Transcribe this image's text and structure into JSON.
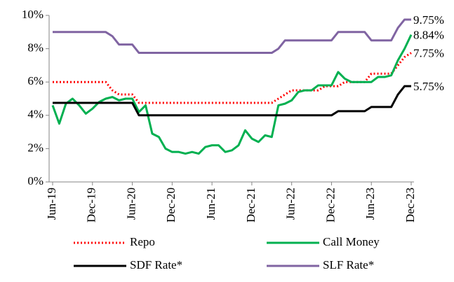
{
  "chart_data": {
    "type": "line",
    "categories": [
      "Jun-19",
      null,
      null,
      null,
      null,
      null,
      "Dec-19",
      null,
      null,
      null,
      null,
      null,
      "Jun-20",
      null,
      null,
      null,
      null,
      null,
      "Dec-20",
      null,
      null,
      null,
      null,
      null,
      "Jun-21",
      null,
      null,
      null,
      null,
      null,
      "Dec-21",
      null,
      null,
      null,
      null,
      null,
      "Jun-22",
      null,
      null,
      null,
      null,
      null,
      "Dec-22",
      null,
      null,
      null,
      null,
      null,
      "Jun-23",
      null,
      null,
      null,
      null,
      null,
      "Dec-23"
    ],
    "ylim": [
      0,
      10
    ],
    "yticks": [
      {
        "value": 0,
        "label": "0%"
      },
      {
        "value": 2,
        "label": "2%"
      },
      {
        "value": 4,
        "label": "4%"
      },
      {
        "value": 6,
        "label": "6%"
      },
      {
        "value": 8,
        "label": "8%"
      },
      {
        "value": 10,
        "label": "10%"
      }
    ],
    "grid": false,
    "legend": "bottom",
    "series": [
      {
        "name": "Repo",
        "color": "#ff0000",
        "dash": "dotted",
        "values": [
          6,
          6,
          6,
          6,
          6,
          6,
          6,
          6,
          6,
          5.5,
          5.25,
          5.25,
          5.25,
          4.75,
          4.75,
          4.75,
          4.75,
          4.75,
          4.75,
          4.75,
          4.75,
          4.75,
          4.75,
          4.75,
          4.75,
          4.75,
          4.75,
          4.75,
          4.75,
          4.75,
          4.75,
          4.75,
          4.75,
          4.75,
          5,
          5.25,
          5.5,
          5.5,
          5.5,
          5.5,
          5.5,
          5.75,
          5.75,
          5.75,
          6,
          6,
          6,
          6,
          6.5,
          6.5,
          6.5,
          6.5,
          7,
          7.5,
          7.75
        ],
        "value_labels": [
          null,
          null,
          null,
          null,
          null,
          null,
          null,
          null,
          null,
          null,
          null,
          null,
          null,
          null,
          null,
          null,
          null,
          null,
          null,
          null,
          null,
          null,
          null,
          null,
          null,
          null,
          null,
          null,
          null,
          null,
          null,
          null,
          null,
          null,
          null,
          null,
          null,
          null,
          null,
          null,
          null,
          null,
          null,
          null,
          null,
          null,
          null,
          null,
          null,
          null,
          null,
          null,
          null,
          null,
          "7.75%"
        ]
      },
      {
        "name": "Call Money",
        "color": "#00b050",
        "dash": "solid",
        "values": [
          4.6,
          3.5,
          4.7,
          5.0,
          4.6,
          4.1,
          4.4,
          4.8,
          5.0,
          5.1,
          4.9,
          5.0,
          5.0,
          4.2,
          4.6,
          2.9,
          2.7,
          2.0,
          1.8,
          1.8,
          1.7,
          1.8,
          1.7,
          2.1,
          2.2,
          2.2,
          1.8,
          1.9,
          2.2,
          3.1,
          2.6,
          2.4,
          2.8,
          2.7,
          4.6,
          4.7,
          4.9,
          5.4,
          5.5,
          5.5,
          5.8,
          5.8,
          5.8,
          6.6,
          6.2,
          6.0,
          6.0,
          6.0,
          6.0,
          6.3,
          6.3,
          6.4,
          7.3,
          8.0,
          8.84
        ],
        "value_labels": [
          null,
          null,
          null,
          null,
          null,
          null,
          null,
          null,
          null,
          null,
          null,
          null,
          null,
          null,
          null,
          null,
          null,
          null,
          null,
          null,
          null,
          null,
          null,
          null,
          null,
          null,
          null,
          null,
          null,
          null,
          null,
          null,
          null,
          null,
          null,
          null,
          null,
          null,
          null,
          null,
          null,
          null,
          null,
          null,
          null,
          null,
          null,
          null,
          null,
          null,
          null,
          null,
          null,
          null,
          "8.84%"
        ]
      },
      {
        "name": "SDF Rate*",
        "color": "#000000",
        "dash": "solid",
        "values": [
          4.75,
          4.75,
          4.75,
          4.75,
          4.75,
          4.75,
          4.75,
          4.75,
          4.75,
          4.75,
          4.75,
          4.75,
          4.75,
          4,
          4,
          4,
          4,
          4,
          4,
          4,
          4,
          4,
          4,
          4,
          4,
          4,
          4,
          4,
          4,
          4,
          4,
          4,
          4,
          4,
          4,
          4,
          4,
          4,
          4,
          4,
          4,
          4,
          4,
          4.25,
          4.25,
          4.25,
          4.25,
          4.25,
          4.5,
          4.5,
          4.5,
          4.5,
          5.25,
          5.75,
          5.75
        ],
        "value_labels": [
          null,
          null,
          null,
          null,
          null,
          null,
          null,
          null,
          null,
          null,
          null,
          null,
          null,
          null,
          null,
          null,
          null,
          null,
          null,
          null,
          null,
          null,
          null,
          null,
          null,
          null,
          null,
          null,
          null,
          null,
          null,
          null,
          null,
          null,
          null,
          null,
          null,
          null,
          null,
          null,
          null,
          null,
          null,
          null,
          null,
          null,
          null,
          null,
          null,
          null,
          null,
          null,
          null,
          null,
          "5.75%"
        ]
      },
      {
        "name": "SLF Rate*",
        "color": "#8064a2",
        "dash": "solid",
        "values": [
          9,
          9,
          9,
          9,
          9,
          9,
          9,
          9,
          9,
          8.75,
          8.25,
          8.25,
          8.25,
          7.75,
          7.75,
          7.75,
          7.75,
          7.75,
          7.75,
          7.75,
          7.75,
          7.75,
          7.75,
          7.75,
          7.75,
          7.75,
          7.75,
          7.75,
          7.75,
          7.75,
          7.75,
          7.75,
          7.75,
          7.75,
          8,
          8.5,
          8.5,
          8.5,
          8.5,
          8.5,
          8.5,
          8.5,
          8.5,
          9,
          9,
          9,
          9,
          9,
          8.5,
          8.5,
          8.5,
          8.5,
          9.25,
          9.75,
          9.75
        ],
        "value_labels": [
          null,
          null,
          null,
          null,
          null,
          null,
          null,
          null,
          null,
          null,
          null,
          null,
          null,
          null,
          null,
          null,
          null,
          null,
          null,
          null,
          null,
          null,
          null,
          null,
          null,
          null,
          null,
          null,
          null,
          null,
          null,
          null,
          null,
          null,
          null,
          null,
          null,
          null,
          null,
          null,
          null,
          null,
          null,
          null,
          null,
          null,
          null,
          null,
          null,
          null,
          null,
          null,
          null,
          null,
          "9.75%"
        ]
      }
    ]
  }
}
